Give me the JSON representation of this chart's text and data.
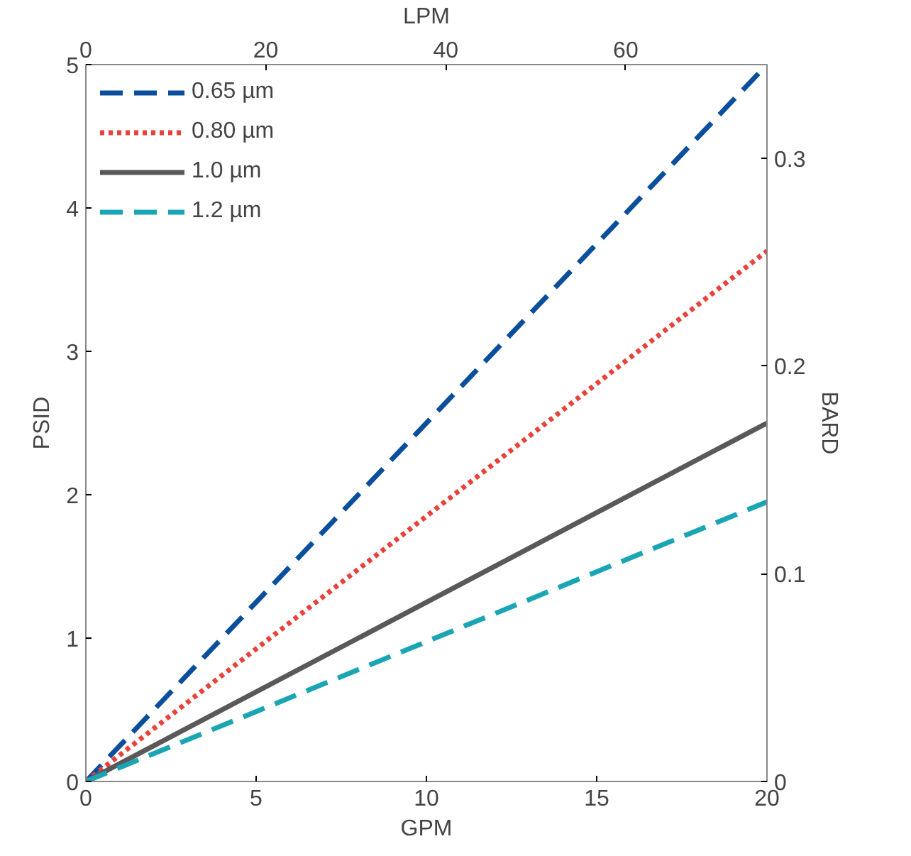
{
  "chart_data": {
    "type": "line",
    "xlabel": "GPM",
    "ylabel": "PSID",
    "y2label": "BARD",
    "x2label": "LPM",
    "x": [
      0,
      20
    ],
    "xlim": [
      0,
      20
    ],
    "xticks": [
      0,
      5,
      10,
      15,
      20
    ],
    "ylim": [
      0,
      5
    ],
    "yticks": [
      0,
      1,
      2,
      3,
      4,
      5
    ],
    "x2lim": [
      0,
      75.7
    ],
    "x2ticks": [
      0,
      20,
      40,
      60
    ],
    "y2lim": [
      0,
      0.345
    ],
    "y2ticks": [
      0,
      0.1,
      0.2,
      0.3
    ],
    "grid": false,
    "legend": "top left",
    "marker": "none",
    "series": [
      {
        "name": "0.65 µm",
        "color": "#0b4f9c",
        "line_style": "dashed",
        "values": [
          0,
          5.0
        ]
      },
      {
        "name": "0.80 µm",
        "color": "#e8423a",
        "line_style": "dotted",
        "values": [
          0,
          3.7
        ]
      },
      {
        "name": "1.0 µm",
        "color": "#595959",
        "line_style": "solid",
        "values": [
          0,
          2.5
        ]
      },
      {
        "name": "1.2 µm",
        "color": "#1aa5b4",
        "line_style": "dashed",
        "values": [
          0,
          1.95
        ]
      }
    ]
  }
}
